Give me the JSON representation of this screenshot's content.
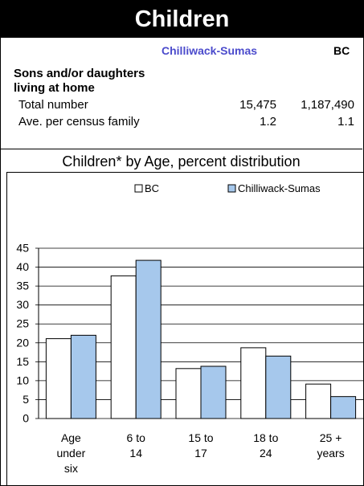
{
  "header": {
    "title": "Children"
  },
  "table": {
    "col_region": "Chilliwack-Sumas",
    "col_bc": "BC",
    "section_label_line1": "Sons and/or daughters",
    "section_label_line2": "living at home",
    "rows": [
      {
        "label": "Total number",
        "region": "15,475",
        "bc": "1,187,490"
      },
      {
        "label": "Ave. per census family",
        "region": "1.2",
        "bc": "1.1"
      }
    ]
  },
  "colors": {
    "bc": "#ffffff",
    "region": "#a6c8ec",
    "title_bg": "#000000",
    "region_text": "#4b4bcc"
  },
  "chart_data": {
    "type": "bar",
    "title": "Children* by Age, percent distribution",
    "categories": [
      [
        "Age",
        "under",
        "six"
      ],
      [
        "6 to",
        "14"
      ],
      [
        "15 to",
        "17"
      ],
      [
        "18 to",
        "24"
      ],
      [
        "25 +",
        "years"
      ]
    ],
    "series": [
      {
        "name": "BC",
        "values": [
          21.1,
          37.7,
          13.2,
          18.7,
          9.1
        ]
      },
      {
        "name": "Chilliwack-Sumas",
        "values": [
          22.0,
          41.8,
          13.8,
          16.5,
          5.8
        ]
      }
    ],
    "ylim": [
      0,
      45
    ],
    "yticks": [
      0,
      5,
      10,
      15,
      20,
      25,
      30,
      35,
      40,
      45
    ],
    "grid": true,
    "legend": "top"
  }
}
